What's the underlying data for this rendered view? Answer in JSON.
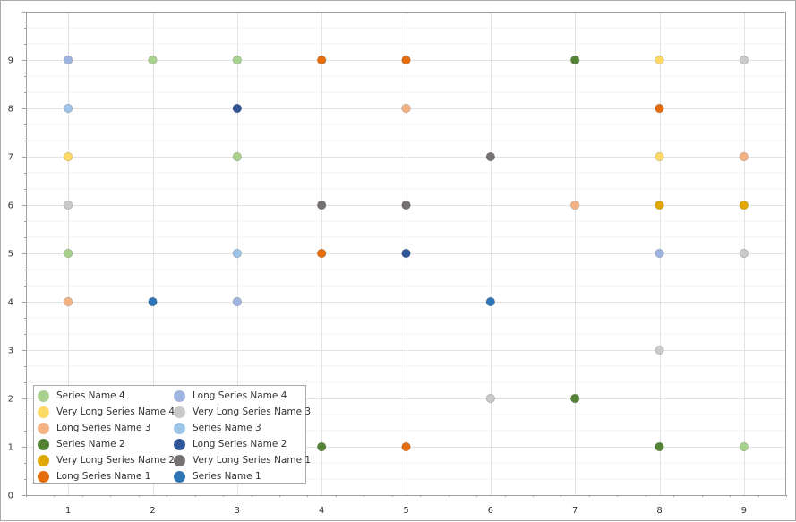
{
  "chart_data": {
    "type": "scatter",
    "title": "",
    "xlabel": "",
    "ylabel": "",
    "xlim": [
      0.5,
      9.5
    ],
    "ylim": [
      0,
      10
    ],
    "x_ticks": [
      1,
      2,
      3,
      4,
      5,
      6,
      7,
      8,
      9
    ],
    "y_ticks": [
      0,
      1,
      2,
      3,
      4,
      5,
      6,
      7,
      8,
      9
    ],
    "grid": true,
    "legend_position": "bottom-left",
    "series": [
      {
        "name": "Series Name 4",
        "color": "#a9d18e",
        "points": [
          [
            2,
            9
          ],
          [
            3,
            9
          ],
          [
            3,
            7
          ],
          [
            1,
            5
          ],
          [
            9,
            1
          ]
        ]
      },
      {
        "name": "Very Long Series Name 4",
        "color": "#ffd966",
        "points": [
          [
            8,
            9
          ],
          [
            1,
            7
          ],
          [
            8,
            7
          ]
        ]
      },
      {
        "name": "Long Series Name 3",
        "color": "#f4b183",
        "points": [
          [
            5,
            8
          ],
          [
            9,
            7
          ],
          [
            7,
            6
          ],
          [
            1,
            4
          ]
        ]
      },
      {
        "name": "Series Name 2",
        "color": "#548235",
        "points": [
          [
            7,
            9
          ],
          [
            7,
            2
          ],
          [
            4,
            1
          ],
          [
            8,
            1
          ]
        ]
      },
      {
        "name": "Very Long Series Name 2",
        "color": "#e0a800",
        "points": [
          [
            8,
            6
          ],
          [
            9,
            6
          ]
        ]
      },
      {
        "name": "Long Series Name 1",
        "color": "#e46c0a",
        "points": [
          [
            4,
            9
          ],
          [
            5,
            9
          ],
          [
            8,
            8
          ],
          [
            4,
            5
          ],
          [
            5,
            1
          ]
        ]
      },
      {
        "name": "Long Series Name 4",
        "color": "#9fb4e0",
        "points": [
          [
            1,
            9
          ],
          [
            8,
            5
          ],
          [
            3,
            4
          ]
        ]
      },
      {
        "name": "Very Long Series Name 3",
        "color": "#c9c9c9",
        "points": [
          [
            9,
            9
          ],
          [
            1,
            6
          ],
          [
            9,
            5
          ],
          [
            8,
            3
          ],
          [
            6,
            2
          ]
        ]
      },
      {
        "name": "Series Name 3",
        "color": "#9dc3e6",
        "points": [
          [
            1,
            8
          ],
          [
            3,
            5
          ]
        ]
      },
      {
        "name": "Long Series Name 2",
        "color": "#2f5597",
        "points": [
          [
            3,
            8
          ],
          [
            5,
            5
          ]
        ]
      },
      {
        "name": "Very Long Series Name 1",
        "color": "#767171",
        "points": [
          [
            6,
            7
          ],
          [
            4,
            6
          ],
          [
            5,
            6
          ]
        ]
      },
      {
        "name": "Series Name 1",
        "color": "#2e75b6",
        "points": [
          [
            2,
            4
          ],
          [
            6,
            4
          ]
        ]
      }
    ]
  }
}
